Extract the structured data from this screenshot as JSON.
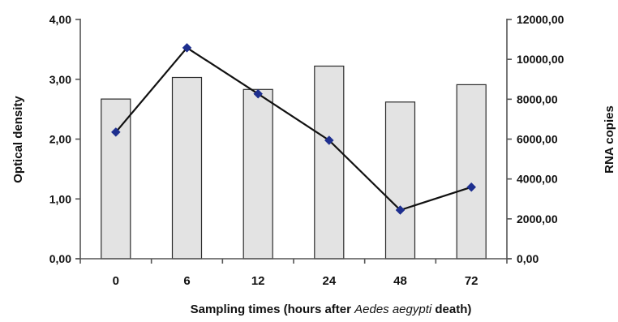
{
  "chart_data": {
    "type": "bar",
    "title": "",
    "categories": [
      "0",
      "6",
      "12",
      "24",
      "48",
      "72"
    ],
    "series": [
      {
        "type": "bar",
        "axis": "left",
        "values": [
          2.67,
          3.03,
          2.83,
          3.22,
          2.62,
          2.91
        ]
      },
      {
        "type": "line",
        "axis": "right",
        "values": [
          6350,
          10580,
          8270,
          5940,
          2440,
          3590
        ]
      }
    ],
    "xlabel_parts": [
      {
        "text": "Sampling times (hours after ",
        "italic": false
      },
      {
        "text": "Aedes aegypti",
        "italic": true
      },
      {
        "text": " death)",
        "italic": false
      }
    ],
    "ylabel_left": "Optical density",
    "ylabel_right": "RNA copies",
    "ylim_left": [
      0,
      4
    ],
    "ylim_right": [
      0,
      12000
    ],
    "yticks_left": [
      "0,00",
      "1,00",
      "2,00",
      "3,00",
      "4,00"
    ],
    "yticks_right": [
      "0,00",
      "2000,00",
      "4000,00",
      "6000,00",
      "8000,00",
      "10000,00",
      "12000,00"
    ],
    "grid": false,
    "legend": "none",
    "colors": {
      "bar_fill": "#e3e3e3",
      "bar_stroke": "#2b2b2b",
      "line": "#111111",
      "marker": "#1e2f8f",
      "axis": "#555555",
      "text": "#111111"
    }
  }
}
